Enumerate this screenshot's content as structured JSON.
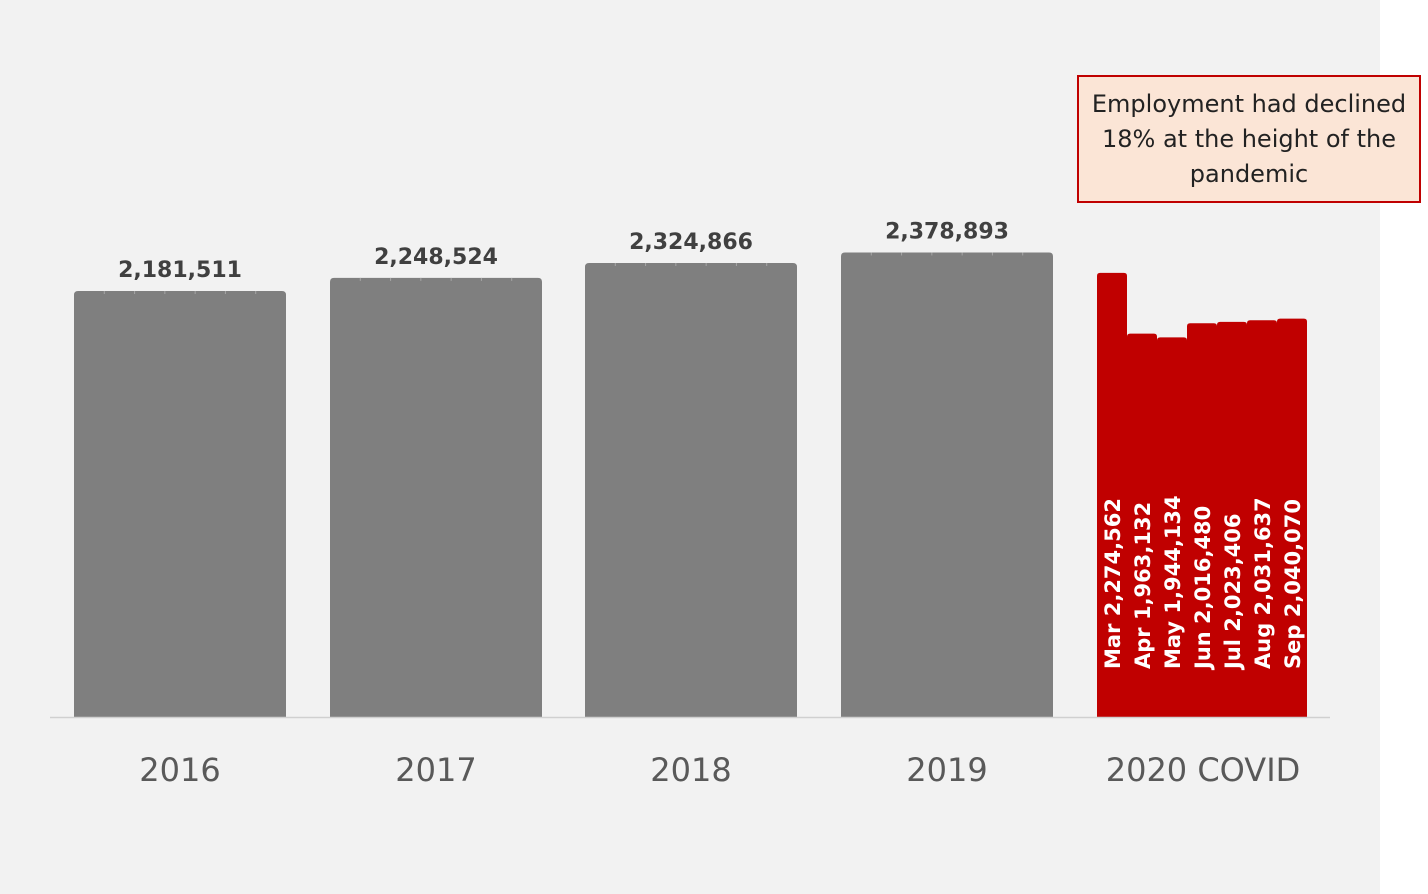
{
  "colors": {
    "background": "#f2f2f2",
    "annual_bar": "#7f7f7f",
    "covid_bar": "#c00000",
    "label_dark": "#404040",
    "label_light": "#ffffff",
    "axis_line": "#d0d0d0",
    "annotation_fill": "#fbe5d6",
    "annotation_border": "#c00000"
  },
  "annotation": {
    "text": "Employment had declined 18% at the height of the pandemic"
  },
  "chart_data": {
    "type": "bar",
    "title": "",
    "xlabel": "",
    "ylabel": "",
    "ylim": [
      0,
      2500000
    ],
    "grid": false,
    "legend": "none",
    "categories": [
      "2016",
      "2017",
      "2018",
      "2019",
      "2020 COVID"
    ],
    "annual": [
      {
        "category": "2016",
        "label": "2,181,511",
        "value": 2181511
      },
      {
        "category": "2017",
        "label": "2,248,524",
        "value": 2248524
      },
      {
        "category": "2018",
        "label": "2,324,866",
        "value": 2324866
      },
      {
        "category": "2019",
        "label": "2,378,893",
        "value": 2378893
      }
    ],
    "covid": {
      "category": "2020 COVID",
      "months": [
        {
          "month": "Mar",
          "label": "2,274,562",
          "value": 2274562
        },
        {
          "month": "Apr",
          "label": "1,963,132",
          "value": 1963132
        },
        {
          "month": "May",
          "label": "1,944,134",
          "value": 1944134
        },
        {
          "month": "Jun",
          "label": "2,016,480",
          "value": 2016480
        },
        {
          "month": "Jul",
          "label": "2,023,406",
          "value": 2023406
        },
        {
          "month": "Aug",
          "label": "2,031,637",
          "value": 2031637
        },
        {
          "month": "Sep",
          "label": "2,040,070",
          "value": 2040070
        }
      ]
    }
  }
}
